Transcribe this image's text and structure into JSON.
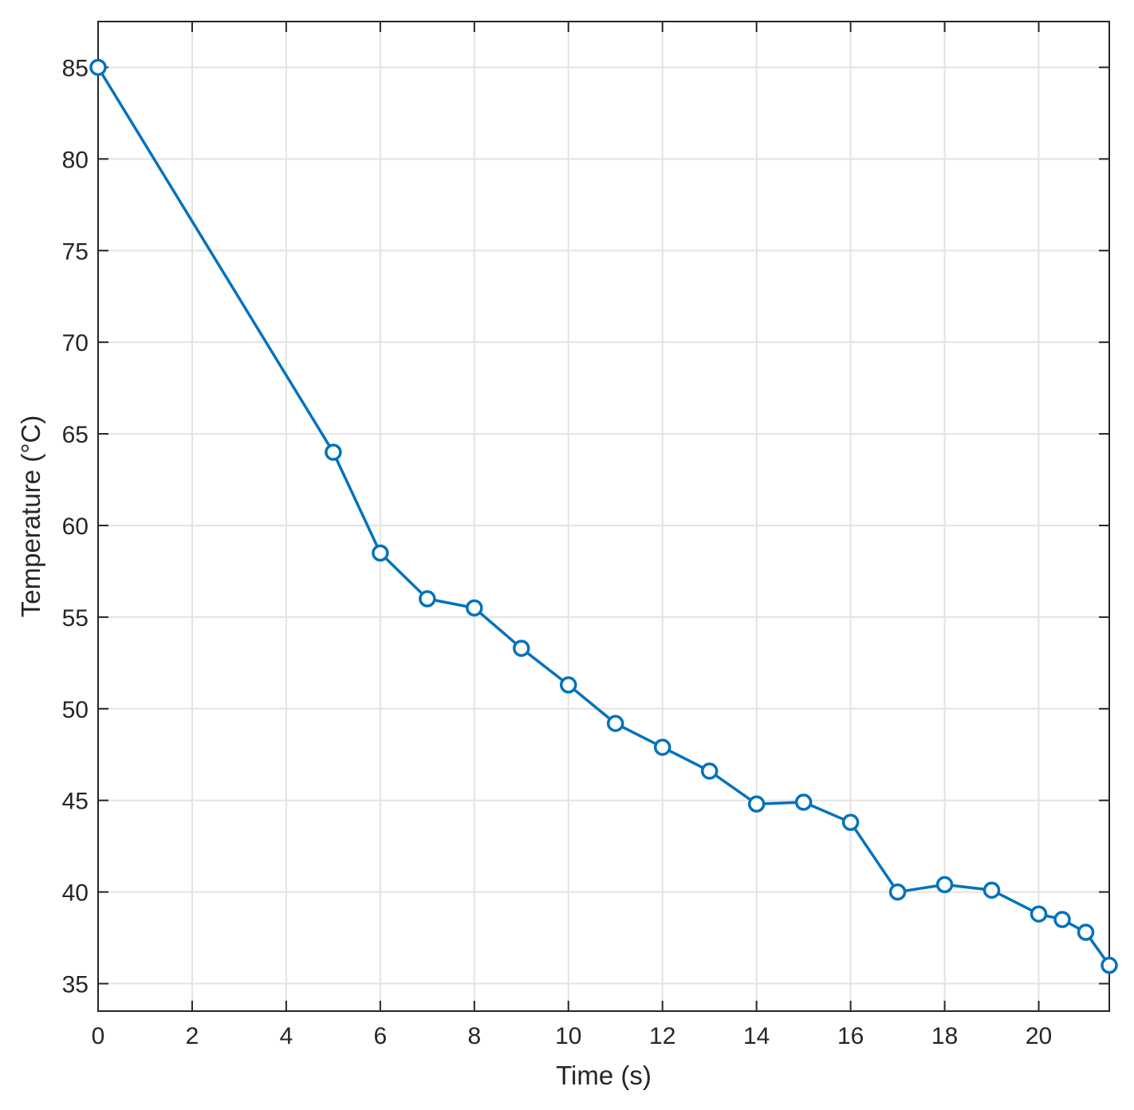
{
  "chart_data": {
    "type": "line",
    "title": "",
    "xlabel": "Time (s)",
    "ylabel": "Temperature (°C)",
    "xlim": [
      0,
      21.5
    ],
    "ylim": [
      33.5,
      87.5
    ],
    "xticks": [
      0,
      2,
      4,
      6,
      8,
      10,
      12,
      14,
      16,
      18,
      20
    ],
    "yticks": [
      35,
      40,
      45,
      50,
      55,
      60,
      65,
      70,
      75,
      80,
      85
    ],
    "grid": true,
    "marker": "circle",
    "series": [
      {
        "color": "#0072BD",
        "x": [
          0,
          5,
          6,
          7,
          8,
          9,
          10,
          11,
          12,
          13,
          14,
          15,
          16,
          17,
          18,
          19,
          20,
          20.5,
          21,
          21.5
        ],
        "y": [
          85,
          64,
          58.5,
          56,
          55.5,
          53.3,
          51.3,
          49.2,
          47.9,
          46.6,
          44.8,
          44.9,
          43.8,
          40,
          40.4,
          40.1,
          38.8,
          38.5,
          37.8,
          36
        ]
      }
    ]
  }
}
